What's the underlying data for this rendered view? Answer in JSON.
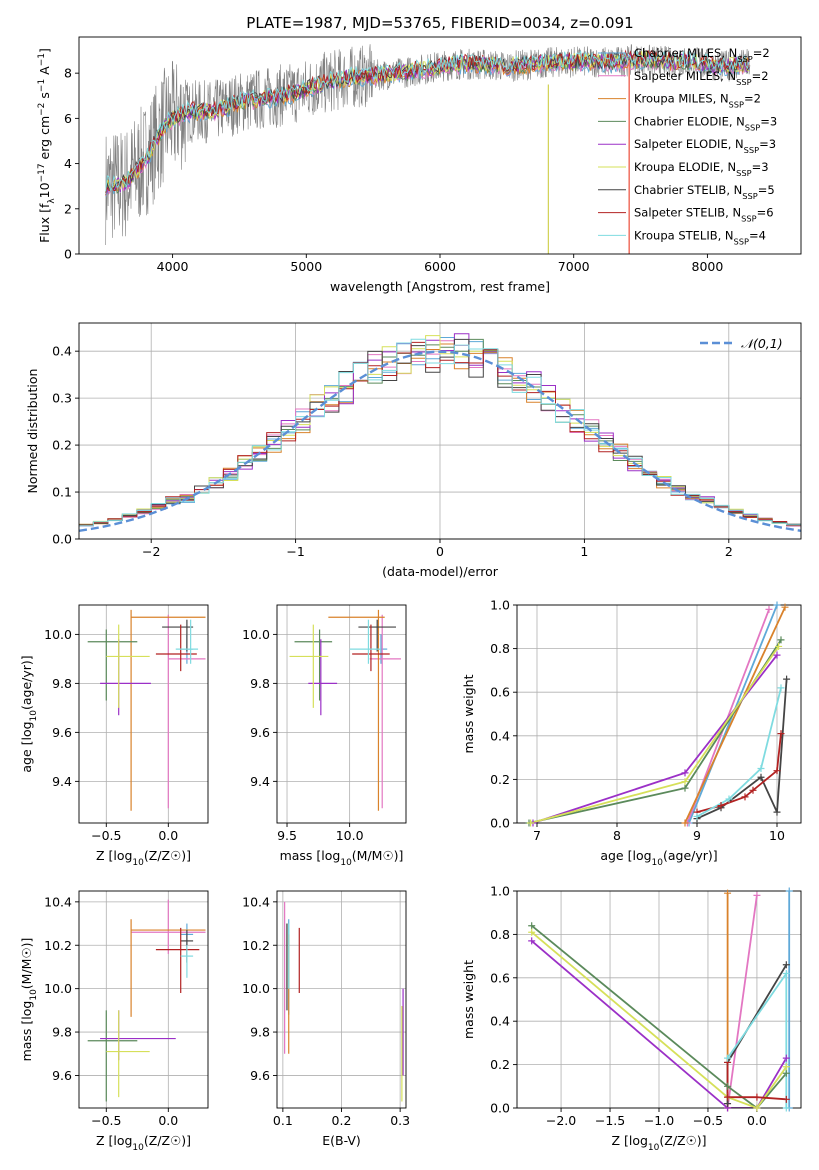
{
  "figure_title": "PLATE=1987, MJD=53765, FIBERID=0034, z=0.091",
  "colors": {
    "Chabrier MILES": "#5fa9d8",
    "Salpeter MILES": "#e377c2",
    "Kroupa MILES": "#d9822b",
    "Chabrier ELODIE": "#5b8a5b",
    "Salpeter ELODIE": "#9b30c7",
    "Kroupa ELODIE": "#d6e05a",
    "Chabrier STELIB": "#444444",
    "Salpeter STELIB": "#b22222",
    "Kroupa STELIB": "#7fdbe0",
    "data": "#808080",
    "normal": "#5b8fd6"
  },
  "chart_data": [
    {
      "id": "spectrum",
      "type": "line",
      "xlabel": "wavelength [Angstrom, rest frame]",
      "ylabel": "Flux [f_λ10^-17 erg cm^-2 s^-1 A^-1]",
      "xlim": [
        3300,
        8700
      ],
      "ylim": [
        0,
        9.6
      ],
      "xticks": [
        4000,
        5000,
        6000,
        7000,
        8000
      ],
      "yticks": [
        0,
        2,
        4,
        6,
        8
      ],
      "legend": [
        "Chabrier MILES, N_SSP=2",
        "Salpeter MILES, N_SSP=2",
        "Kroupa MILES, N_SSP=2",
        "Chabrier ELODIE, N_SSP=3",
        "Salpeter ELODIE, N_SSP=3",
        "Kroupa ELODIE, N_SSP=3",
        "Chabrier STELIB, N_SSP=5",
        "Salpeter STELIB, N_SSP=6",
        "Kroupa STELIB, N_SSP=4"
      ],
      "legend_location": "right",
      "continuum": [
        [
          3500,
          3.0
        ],
        [
          3650,
          3.1
        ],
        [
          3800,
          4.2
        ],
        [
          3950,
          5.8
        ],
        [
          4100,
          6.3
        ],
        [
          4300,
          6.3
        ],
        [
          4500,
          6.7
        ],
        [
          4700,
          6.9
        ],
        [
          4900,
          7.1
        ],
        [
          5100,
          7.5
        ],
        [
          5300,
          7.8
        ],
        [
          5500,
          7.9
        ],
        [
          5700,
          8.0
        ],
        [
          5900,
          8.2
        ],
        [
          6100,
          8.4
        ],
        [
          6300,
          8.4
        ],
        [
          6500,
          8.3
        ],
        [
          6700,
          8.4
        ],
        [
          6900,
          8.5
        ],
        [
          7100,
          8.5
        ],
        [
          7300,
          8.5
        ],
        [
          7500,
          8.6
        ],
        [
          7700,
          8.5
        ],
        [
          7900,
          8.5
        ],
        [
          8100,
          8.3
        ],
        [
          8300,
          8.4
        ]
      ],
      "grid": false
    },
    {
      "id": "residuals",
      "type": "histogram",
      "xlabel": "(data-model)/error",
      "ylabel": "Normed distribution",
      "xlim": [
        -2.5,
        2.5
      ],
      "ylim": [
        0,
        0.46
      ],
      "xticks": [
        -2,
        -1,
        0,
        1,
        2
      ],
      "yticks": [
        0.0,
        0.1,
        0.2,
        0.3,
        0.4
      ],
      "legend": [
        "𝒩(0,1)"
      ],
      "legend_location": "upper right",
      "grid": true,
      "bin_width": 0.1,
      "gaussian": {
        "mean": 0,
        "sigma": 1
      }
    },
    {
      "id": "age_vs_Z",
      "type": "errorbar",
      "xlabel": "Z [log10(Z/Z☉)]",
      "ylabel": "age  [log10(age/yr)]",
      "xlim": [
        -0.72,
        0.32
      ],
      "ylim": [
        9.23,
        10.12
      ],
      "xticks": [
        -0.5,
        0.0
      ],
      "yticks": [
        9.4,
        9.6,
        9.8,
        10.0
      ],
      "grid": true,
      "points": [
        {
          "model": "Chabrier MILES",
          "x": 0.15,
          "xerr": [
            0.05,
            0.05
          ],
          "y": 9.94,
          "yerr": [
            0.06,
            0.06
          ]
        },
        {
          "model": "Salpeter MILES",
          "x": 0.0,
          "xerr": [
            0.0,
            0.3
          ],
          "y": 9.9,
          "yerr": [
            0.61,
            0.18
          ]
        },
        {
          "model": "Kroupa MILES",
          "x": -0.3,
          "xerr": [
            0.0,
            0.6
          ],
          "y": 10.07,
          "yerr": [
            0.79,
            0.03
          ]
        },
        {
          "model": "Chabrier ELODIE",
          "x": -0.5,
          "xerr": [
            0.15,
            0.25
          ],
          "y": 9.97,
          "yerr": [
            0.24,
            0.05
          ]
        },
        {
          "model": "Salpeter ELODIE",
          "x": -0.4,
          "xerr": [
            0.15,
            0.26
          ],
          "y": 9.8,
          "yerr": [
            0.13,
            0.18
          ]
        },
        {
          "model": "Kroupa ELODIE",
          "x": -0.4,
          "xerr": [
            0.1,
            0.25
          ],
          "y": 9.91,
          "yerr": [
            0.21,
            0.13
          ]
        },
        {
          "model": "Chabrier STELIB",
          "x": 0.15,
          "xerr": [
            0.2,
            0.05
          ],
          "y": 10.03,
          "yerr": [
            0.1,
            0.03
          ]
        },
        {
          "model": "Salpeter STELIB",
          "x": 0.1,
          "xerr": [
            0.2,
            0.13
          ],
          "y": 9.92,
          "yerr": [
            0.07,
            0.12
          ]
        },
        {
          "model": "Kroupa STELIB",
          "x": 0.18,
          "xerr": [
            0.12,
            0.06
          ],
          "y": 9.94,
          "yerr": [
            0.06,
            0.12
          ]
        }
      ]
    },
    {
      "id": "age_vs_mass",
      "type": "errorbar",
      "xlabel": "mass [log10(M/M☉)]",
      "ylabel": "",
      "xlim": [
        9.42,
        10.45
      ],
      "ylim": [
        9.23,
        10.12
      ],
      "xticks": [
        9.5,
        10.0
      ],
      "yticks": [
        9.4,
        9.6,
        9.8,
        10.0
      ],
      "grid": true,
      "points": [
        {
          "model": "Chabrier MILES",
          "x": 10.25,
          "xerr": [
            0.05,
            0.05
          ],
          "y": 9.94,
          "yerr": [
            0.06,
            0.06
          ]
        },
        {
          "model": "Salpeter MILES",
          "x": 10.26,
          "xerr": [
            0.1,
            0.15
          ],
          "y": 9.9,
          "yerr": [
            0.61,
            0.18
          ]
        },
        {
          "model": "Kroupa MILES",
          "x": 10.23,
          "xerr": [
            0.4,
            0.05
          ],
          "y": 10.07,
          "yerr": [
            0.79,
            0.03
          ]
        },
        {
          "model": "Chabrier ELODIE",
          "x": 9.76,
          "xerr": [
            0.2,
            0.1
          ],
          "y": 9.97,
          "yerr": [
            0.24,
            0.05
          ]
        },
        {
          "model": "Salpeter ELODIE",
          "x": 9.77,
          "xerr": [
            0.1,
            0.13
          ],
          "y": 9.8,
          "yerr": [
            0.13,
            0.18
          ]
        },
        {
          "model": "Kroupa ELODIE",
          "x": 9.71,
          "xerr": [
            0.19,
            0.12
          ],
          "y": 9.91,
          "yerr": [
            0.21,
            0.13
          ]
        },
        {
          "model": "Chabrier STELIB",
          "x": 10.22,
          "xerr": [
            0.15,
            0.15
          ],
          "y": 10.03,
          "yerr": [
            0.1,
            0.03
          ]
        },
        {
          "model": "Salpeter STELIB",
          "x": 10.17,
          "xerr": [
            0.15,
            0.15
          ],
          "y": 9.92,
          "yerr": [
            0.07,
            0.12
          ]
        },
        {
          "model": "Kroupa STELIB",
          "x": 10.15,
          "xerr": [
            0.15,
            0.1
          ],
          "y": 9.94,
          "yerr": [
            0.06,
            0.12
          ]
        }
      ]
    },
    {
      "id": "weight_vs_age",
      "type": "line",
      "xlabel": "age  [log10(age/yr)]",
      "ylabel": "mass weight",
      "xlim": [
        6.75,
        10.3
      ],
      "ylim": [
        0,
        1
      ],
      "xticks": [
        7,
        8,
        9,
        10
      ],
      "yticks": [
        0.0,
        0.2,
        0.4,
        0.6,
        0.8,
        1.0
      ],
      "grid": true,
      "series": [
        {
          "model": "Chabrier MILES",
          "points": [
            [
              8.9,
              0.0
            ],
            [
              10.0,
              1.0
            ]
          ]
        },
        {
          "model": "Salpeter MILES",
          "points": [
            [
              8.88,
              0.0
            ],
            [
              9.9,
              0.98
            ]
          ]
        },
        {
          "model": "Kroupa MILES",
          "points": [
            [
              8.85,
              0.0
            ],
            [
              10.1,
              0.99
            ]
          ]
        },
        {
          "model": "Chabrier ELODIE",
          "points": [
            [
              6.9,
              0.0
            ],
            [
              8.85,
              0.16
            ],
            [
              10.05,
              0.84
            ]
          ]
        },
        {
          "model": "Salpeter ELODIE",
          "points": [
            [
              6.95,
              0.0
            ],
            [
              8.85,
              0.23
            ],
            [
              10.0,
              0.77
            ]
          ]
        },
        {
          "model": "Kroupa ELODIE",
          "points": [
            [
              6.92,
              0.0
            ],
            [
              8.85,
              0.19
            ],
            [
              10.02,
              0.81
            ]
          ]
        },
        {
          "model": "Chabrier STELIB",
          "points": [
            [
              9.0,
              0.02
            ],
            [
              9.3,
              0.07
            ],
            [
              9.8,
              0.21
            ],
            [
              10.0,
              0.05
            ],
            [
              10.12,
              0.66
            ]
          ]
        },
        {
          "model": "Salpeter STELIB",
          "points": [
            [
              9.0,
              0.05
            ],
            [
              9.3,
              0.08
            ],
            [
              9.6,
              0.12
            ],
            [
              9.7,
              0.15
            ],
            [
              10.0,
              0.24
            ],
            [
              10.05,
              0.41
            ]
          ]
        },
        {
          "model": "Kroupa STELIB",
          "points": [
            [
              9.0,
              0.03
            ],
            [
              9.4,
              0.11
            ],
            [
              9.8,
              0.25
            ],
            [
              10.05,
              0.62
            ]
          ]
        }
      ]
    },
    {
      "id": "mass_vs_Z",
      "type": "errorbar",
      "xlabel": "Z [log10(Z/Z☉)]",
      "ylabel": "mass [log10(M/M☉)]",
      "xlim": [
        -0.72,
        0.32
      ],
      "ylim": [
        9.45,
        10.45
      ],
      "xticks": [
        -0.5,
        0.0
      ],
      "yticks": [
        9.6,
        9.8,
        10.0,
        10.2,
        10.4
      ],
      "grid": true,
      "points": [
        {
          "model": "Chabrier MILES",
          "x": 0.15,
          "xerr": [
            0.05,
            0.05
          ],
          "y": 10.25,
          "yerr": [
            0.05,
            0.05
          ]
        },
        {
          "model": "Salpeter MILES",
          "x": 0.0,
          "xerr": [
            0.3,
            0.3
          ],
          "y": 10.26,
          "yerr": [
            0.1,
            0.15
          ]
        },
        {
          "model": "Kroupa MILES",
          "x": -0.3,
          "xerr": [
            0.0,
            0.6
          ],
          "y": 10.27,
          "yerr": [
            0.4,
            0.05
          ]
        },
        {
          "model": "Chabrier ELODIE",
          "x": -0.5,
          "xerr": [
            0.15,
            0.25
          ],
          "y": 9.76,
          "yerr": [
            0.28,
            0.14
          ]
        },
        {
          "model": "Salpeter ELODIE",
          "x": -0.4,
          "xerr": [
            0.15,
            0.46
          ],
          "y": 9.77,
          "yerr": [
            0.1,
            0.13
          ]
        },
        {
          "model": "Kroupa ELODIE",
          "x": -0.4,
          "xerr": [
            0.1,
            0.25
          ],
          "y": 9.71,
          "yerr": [
            0.21,
            0.19
          ]
        },
        {
          "model": "Chabrier STELIB",
          "x": 0.15,
          "xerr": [
            0.05,
            0.05
          ],
          "y": 10.22,
          "yerr": [
            0.1,
            0.05
          ]
        },
        {
          "model": "Salpeter STELIB",
          "x": 0.1,
          "xerr": [
            0.2,
            0.15
          ],
          "y": 10.18,
          "yerr": [
            0.2,
            0.1
          ]
        },
        {
          "model": "Kroupa STELIB",
          "x": 0.15,
          "xerr": [
            0.05,
            0.05
          ],
          "y": 10.15,
          "yerr": [
            0.1,
            0.05
          ]
        }
      ]
    },
    {
      "id": "mass_vs_EBV",
      "type": "errorbar",
      "xlabel": "E(B-V)",
      "ylabel": "",
      "xlim": [
        0.09,
        0.31
      ],
      "ylim": [
        9.45,
        10.45
      ],
      "xticks": [
        0.1,
        0.2,
        0.3
      ],
      "yticks": [
        9.6,
        9.8,
        10.0,
        10.2,
        10.4
      ],
      "grid": true,
      "points": [
        {
          "model": "Chabrier MILES",
          "x": 0.11,
          "y": 10.1,
          "yerr": [
            0.22,
            0.22
          ]
        },
        {
          "model": "Salpeter MILES",
          "x": 0.103,
          "y": 10.1,
          "yerr": [
            0.4,
            0.3
          ]
        },
        {
          "model": "Kroupa MILES",
          "x": 0.11,
          "y": 10.0,
          "yerr": [
            0.3,
            0.25
          ]
        },
        {
          "model": "Chabrier ELODIE",
          "x": 0.107,
          "y": 10.15,
          "yerr": [
            0.15,
            0.15
          ]
        },
        {
          "model": "Salpeter ELODIE",
          "x": 0.305,
          "y": 9.8,
          "yerr": [
            0.2,
            0.2
          ]
        },
        {
          "model": "Kroupa ELODIE",
          "x": 0.303,
          "y": 9.7,
          "yerr": [
            0.22,
            0.22
          ]
        },
        {
          "model": "Chabrier STELIB",
          "x": 0.107,
          "y": 10.1,
          "yerr": [
            0.2,
            0.2
          ]
        },
        {
          "model": "Salpeter STELIB",
          "x": 0.128,
          "y": 10.13,
          "yerr": [
            0.15,
            0.15
          ]
        },
        {
          "model": "Kroupa STELIB",
          "x": 0.11,
          "y": 10.15,
          "yerr": [
            0.15,
            0.15
          ]
        }
      ]
    },
    {
      "id": "weight_vs_Z",
      "type": "line",
      "xlabel": "Z [log10(Z/Z☉)]",
      "ylabel": "mass weight",
      "xlim": [
        -2.45,
        0.45
      ],
      "ylim": [
        0,
        1
      ],
      "xticks": [
        -2.0,
        -1.5,
        -1.0,
        -0.5,
        0.0
      ],
      "yticks": [
        0.0,
        0.2,
        0.4,
        0.6,
        0.8,
        1.0
      ],
      "grid": true,
      "series": [
        {
          "model": "Chabrier MILES",
          "points": [
            [
              0.33,
              0.0
            ],
            [
              0.33,
              1.0
            ]
          ]
        },
        {
          "model": "Salpeter MILES",
          "points": [
            [
              -0.3,
              0.0
            ],
            [
              0.0,
              0.98
            ]
          ]
        },
        {
          "model": "Kroupa MILES",
          "points": [
            [
              -0.3,
              0.0
            ],
            [
              -0.3,
              0.99
            ]
          ]
        },
        {
          "model": "Chabrier ELODIE",
          "points": [
            [
              -2.3,
              0.84
            ],
            [
              -0.3,
              0.1
            ],
            [
              0.0,
              0.0
            ],
            [
              0.3,
              0.16
            ]
          ]
        },
        {
          "model": "Salpeter ELODIE",
          "points": [
            [
              -2.3,
              0.77
            ],
            [
              -0.3,
              0.0
            ],
            [
              0.0,
              0.0
            ],
            [
              0.3,
              0.23
            ]
          ]
        },
        {
          "model": "Kroupa ELODIE",
          "points": [
            [
              -2.3,
              0.81
            ],
            [
              -0.3,
              0.05
            ],
            [
              0.0,
              0.0
            ],
            [
              0.3,
              0.19
            ]
          ]
        },
        {
          "model": "Chabrier STELIB",
          "points": [
            [
              -0.3,
              0.02
            ],
            [
              -0.3,
              0.21
            ],
            [
              0.3,
              0.66
            ]
          ]
        },
        {
          "model": "Salpeter STELIB",
          "points": [
            [
              -0.3,
              0.21
            ],
            [
              -0.3,
              0.05
            ],
            [
              0.0,
              0.05
            ],
            [
              0.3,
              0.04
            ]
          ]
        },
        {
          "model": "Kroupa STELIB",
          "points": [
            [
              -0.3,
              0.23
            ],
            [
              0.3,
              0.62
            ],
            [
              0.3,
              0.0
            ]
          ]
        }
      ]
    }
  ]
}
